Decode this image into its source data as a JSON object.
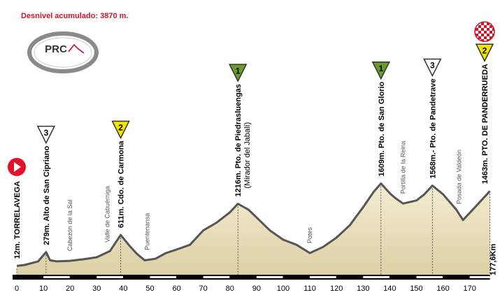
{
  "header": {
    "title": "Desnivel acumulado: 3870 m.",
    "logo": "PRC"
  },
  "chart_data": {
    "type": "area",
    "x": [
      0,
      3,
      8,
      11,
      12.5,
      15,
      20,
      25,
      30,
      35,
      39,
      42,
      45,
      48,
      52,
      56,
      60,
      65,
      70,
      75,
      80,
      83,
      87,
      90,
      95,
      100,
      105,
      110,
      115,
      120,
      125,
      130,
      134,
      136.7,
      140,
      142,
      145,
      150,
      153,
      156,
      160,
      165,
      167.5,
      172,
      177.6
    ],
    "values": [
      12,
      30,
      100,
      279,
      120,
      100,
      110,
      140,
      180,
      300,
      611,
      420,
      250,
      120,
      150,
      260,
      330,
      420,
      700,
      850,
      1050,
      1216,
      1100,
      950,
      700,
      520,
      420,
      260,
      380,
      560,
      800,
      1150,
      1450,
      1609,
      1420,
      1330,
      1220,
      1280,
      1400,
      1568,
      1400,
      1100,
      900,
      1150,
      1463
    ],
    "xlim": [
      0,
      177.6
    ],
    "ylim": [
      -200,
      1900
    ],
    "xticks": [
      0,
      10,
      20,
      30,
      40,
      50,
      60,
      70,
      80,
      90,
      100,
      110,
      120,
      130,
      140,
      150,
      160,
      170
    ],
    "color": "#e9dfbd",
    "line_color": "#555555",
    "end_label": "177,6Km",
    "category_colors": {
      "1": "#6b9b2a",
      "2": "#f2e400",
      "3": "#ffffff"
    },
    "climbs": [
      {
        "km": 0,
        "altitude": 12,
        "label": "12m. TORRELAVEGA"
      },
      {
        "km": 11,
        "altitude": 279,
        "label": "279m. Alto de San Cipriano",
        "category": 3
      },
      {
        "km": 39,
        "altitude": 611,
        "label": "611m. Cdo. de Carmona",
        "category": 2
      },
      {
        "km": 83,
        "altitude": 1216,
        "label": "1216m. Pto. de Piedrasluengas",
        "sublabel": "(Mirador del Jabalí)",
        "category": 1
      },
      {
        "km": 136.7,
        "altitude": 1609,
        "label": "1609m. Pto. de San Glorio",
        "category": 1
      },
      {
        "km": 156,
        "altitude": 1568,
        "label": "1568m.- Pto. de Pandetrave",
        "category": 3
      },
      {
        "km": 177.6,
        "altitude": 1463,
        "label": "1463m. PTO. DE PANDERRUEDA",
        "category": 2
      }
    ],
    "places": [
      {
        "km": 20,
        "label": "Cabezón de la Sal"
      },
      {
        "km": 34,
        "label": "Valle de Cabuérniga"
      },
      {
        "km": 49,
        "label": "Puentenansa"
      },
      {
        "km": 110,
        "label": "Potes"
      },
      {
        "km": 145,
        "label": "Portilla de la Reina"
      },
      {
        "km": 166,
        "label": "Posada de Valdeón"
      }
    ]
  }
}
